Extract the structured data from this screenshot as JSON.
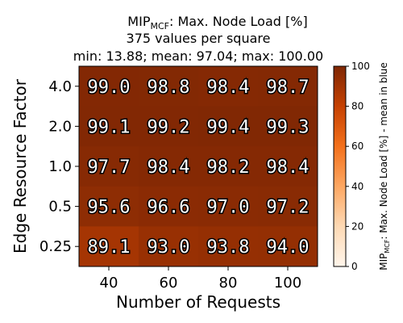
{
  "chart_data": {
    "type": "heatmap",
    "title": {
      "main_prefix": "MIP",
      "main_subscript": "MCF",
      "main_suffix": ": Max. Node Load [%]",
      "line2": "375 values per square",
      "line3": "min: 13.88; mean: 97.04; max: 100.00"
    },
    "xlabel": "Number of Requests",
    "ylabel": "Edge Resource Factor",
    "x_categories": [
      "40",
      "60",
      "80",
      "100"
    ],
    "y_categories": [
      "4.0",
      "2.0",
      "1.0",
      "0.5",
      "0.25"
    ],
    "values": [
      [
        99.0,
        98.8,
        98.4,
        98.7
      ],
      [
        99.1,
        99.2,
        99.4,
        99.3
      ],
      [
        97.7,
        98.4,
        98.2,
        98.4
      ],
      [
        95.6,
        96.6,
        97.0,
        97.2
      ],
      [
        89.1,
        93.0,
        93.8,
        94.0
      ]
    ],
    "value_format": "1 decimal",
    "colormap": "Oranges",
    "colorbar": {
      "range": [
        0,
        100
      ],
      "ticks": [
        "0",
        "20",
        "40",
        "60",
        "80",
        "100"
      ],
      "label_prefix": "MIP",
      "label_subscript": "MCF",
      "label_suffix": ": Max. Node Load [%] - mean in blue"
    }
  }
}
